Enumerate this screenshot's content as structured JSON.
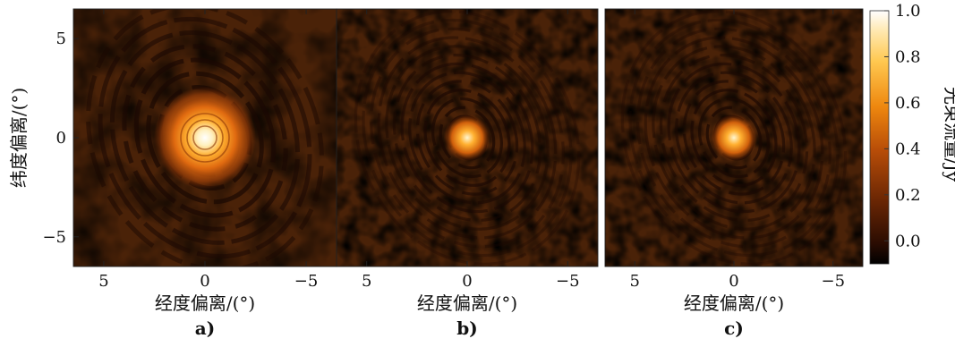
{
  "chart_data": [
    {
      "type": "heatmap",
      "panel_label": "a)",
      "xlabel": "经度偏离/(°)",
      "ylabel": "纬度偏离/(°)",
      "xlim": [
        6.5,
        -6.5
      ],
      "ylim": [
        -6.5,
        6.5
      ],
      "xticks": [
        5,
        0,
        -5
      ],
      "yticks": [
        5,
        0,
        -5
      ],
      "xtick_labels": [
        "5",
        "0",
        "−5"
      ],
      "ytick_labels": [
        "5",
        "0",
        "−5"
      ],
      "center": [
        0,
        0
      ],
      "peak_flux": 1.0
    },
    {
      "type": "heatmap",
      "panel_label": "b)",
      "xlabel": "经度偏离/(°)",
      "xlim": [
        6.5,
        -6.5
      ],
      "ylim": [
        -6.5,
        6.5
      ],
      "xticks": [
        5,
        0,
        -5
      ],
      "xtick_labels": [
        "5",
        "0",
        "−5"
      ],
      "center": [
        0,
        0
      ],
      "peak_flux": 0.65
    },
    {
      "type": "heatmap",
      "panel_label": "c)",
      "xlabel": "经度偏离/(°)",
      "xlim": [
        6.5,
        -6.5
      ],
      "ylim": [
        -6.5,
        6.5
      ],
      "xticks": [
        5,
        0,
        -5
      ],
      "xtick_labels": [
        "5",
        "0",
        "−5"
      ],
      "center": [
        0,
        0
      ],
      "peak_flux": 0.65
    }
  ],
  "colorbar": {
    "label": "光束流量/Jy",
    "range": [
      -0.1,
      1.0
    ],
    "ticks": [
      1.0,
      0.8,
      0.6,
      0.4,
      0.2,
      0.0
    ],
    "tick_labels": [
      "1.0",
      "0.8",
      "0.6",
      "0.4",
      "0.2",
      "0.0"
    ],
    "colormap_stops": [
      "#000000",
      "#3a1202",
      "#7a2d05",
      "#c4560a",
      "#f0900f",
      "#ffd25a",
      "#ffffff"
    ]
  },
  "colors": {
    "background_mid": "#4a2208",
    "dark_fringe": "#1a0803"
  }
}
